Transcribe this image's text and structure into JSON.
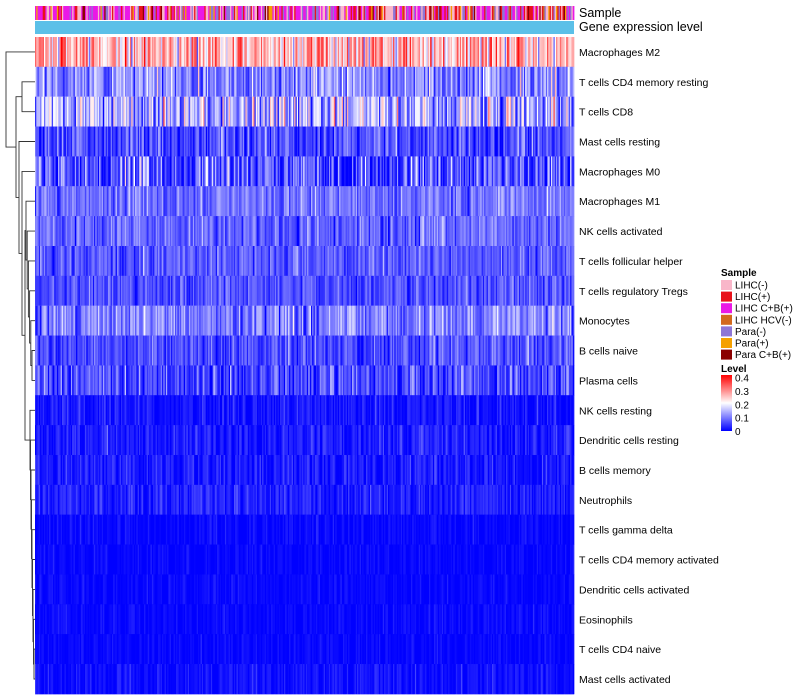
{
  "chart_data": {
    "type": "heatmap",
    "title": "",
    "annotation_tracks": [
      "Sample",
      "Gene expression level"
    ],
    "rows": [
      {
        "name": "Macrophages M2",
        "mean": 0.26,
        "sd": 0.07
      },
      {
        "name": "T cells CD4 memory resting",
        "mean": 0.11,
        "sd": 0.05
      },
      {
        "name": "T cells CD8",
        "mean": 0.14,
        "sd": 0.07
      },
      {
        "name": "Mast cells resting",
        "mean": 0.06,
        "sd": 0.04
      },
      {
        "name": "Macrophages M0",
        "mean": 0.06,
        "sd": 0.06
      },
      {
        "name": "Macrophages M1",
        "mean": 0.09,
        "sd": 0.03
      },
      {
        "name": "NK cells activated",
        "mean": 0.08,
        "sd": 0.03
      },
      {
        "name": "T cells follicular helper",
        "mean": 0.07,
        "sd": 0.03
      },
      {
        "name": "T cells regulatory  Tregs",
        "mean": 0.06,
        "sd": 0.03
      },
      {
        "name": "Monocytes",
        "mean": 0.1,
        "sd": 0.04
      },
      {
        "name": "B cells naive",
        "mean": 0.06,
        "sd": 0.03
      },
      {
        "name": "Plasma cells",
        "mean": 0.06,
        "sd": 0.04
      },
      {
        "name": "NK cells resting",
        "mean": 0.015,
        "sd": 0.02
      },
      {
        "name": "Dendritic cells resting",
        "mean": 0.02,
        "sd": 0.02
      },
      {
        "name": "B cells memory",
        "mean": 0.02,
        "sd": 0.02
      },
      {
        "name": "Neutrophils",
        "mean": 0.025,
        "sd": 0.02
      },
      {
        "name": "T cells gamma delta",
        "mean": 0.005,
        "sd": 0.012
      },
      {
        "name": "T cells CD4 memory activated",
        "mean": 0.005,
        "sd": 0.01
      },
      {
        "name": "Dendritic cells activated",
        "mean": 0.005,
        "sd": 0.01
      },
      {
        "name": "Eosinophils",
        "mean": 0.005,
        "sd": 0.01
      },
      {
        "name": "T cells CD4 naive",
        "mean": 0.005,
        "sd": 0.01
      },
      {
        "name": "Mast cells activated",
        "mean": 0.01,
        "sd": 0.015
      }
    ],
    "sample_groups": [
      {
        "name": "LIHC(-)",
        "color": "#f9b6c9"
      },
      {
        "name": "LIHC(+)",
        "color": "#e8131b"
      },
      {
        "name": "LIHC C+B(+)",
        "color": "#ea18e6"
      },
      {
        "name": "LIHC HCV(-)",
        "color": "#d2691e"
      },
      {
        "name": "Para(-)",
        "color": "#8e76d6"
      },
      {
        "name": "Para(+)",
        "color": "#f5a000"
      },
      {
        "name": "Para C+B(+)",
        "color": "#8b0000"
      }
    ],
    "gene_expression_level_color": "#5bc0e8",
    "legend": {
      "sample_title": "Sample",
      "level_title": "Level",
      "level_ticks": [
        "0.4",
        "0.3",
        "0.2",
        "0.1",
        "0"
      ],
      "level_range": [
        0,
        0.4
      ],
      "colors": {
        "low": "#0000ff",
        "mid": "#ffffff",
        "high": "#ff0000"
      }
    },
    "n_samples": 420
  }
}
